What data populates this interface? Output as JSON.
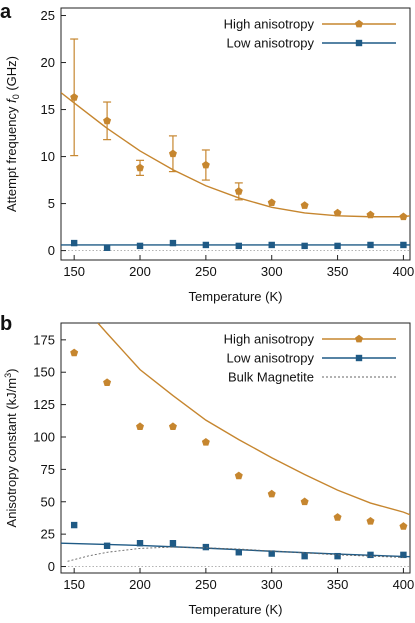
{
  "colors": {
    "high": "#C6862F",
    "low": "#1F5A85",
    "bulk": "#666666",
    "zero": "#9A9A9A"
  },
  "chart_data": [
    {
      "type": "scatter",
      "panel_label": "a",
      "xlabel": "Temperature (K)",
      "ylabel": "Attempt frequency f0 (GHz)",
      "ylabel_main": "Attempt frequency ",
      "ylabel_symbol": "f",
      "ylabel_sub": "0",
      "ylabel_unit": " (GHz)",
      "xlim": [
        140,
        405
      ],
      "ylim": [
        -1,
        25.8
      ],
      "x_ticks": [
        150,
        200,
        250,
        300,
        350,
        400
      ],
      "y_ticks": [
        0,
        5,
        10,
        15,
        20,
        25
      ],
      "grid": false,
      "legend": "top-right",
      "zero_line": 0,
      "series": [
        {
          "name": "High anisotropy",
          "marker": "pentagon",
          "color_key": "high",
          "points": [
            {
              "x": 150,
              "y": 16.3,
              "err": 6.2
            },
            {
              "x": 175,
              "y": 13.8,
              "err": 2.0
            },
            {
              "x": 200,
              "y": 8.8,
              "err": 0.8
            },
            {
              "x": 225,
              "y": 10.3,
              "err": 1.9
            },
            {
              "x": 250,
              "y": 9.1,
              "err": 1.6
            },
            {
              "x": 275,
              "y": 6.3,
              "err": 0.9
            },
            {
              "x": 300,
              "y": 5.1,
              "err": 0
            },
            {
              "x": 325,
              "y": 4.8,
              "err": 0
            },
            {
              "x": 350,
              "y": 4.0,
              "err": 0
            },
            {
              "x": 375,
              "y": 3.8,
              "err": 0
            },
            {
              "x": 400,
              "y": 3.6,
              "err": 0
            }
          ],
          "fit": [
            [
              140,
              16.8
            ],
            [
              150,
              15.7
            ],
            [
              175,
              13.0
            ],
            [
              200,
              10.6
            ],
            [
              225,
              8.6
            ],
            [
              250,
              6.9
            ],
            [
              275,
              5.6
            ],
            [
              300,
              4.6
            ],
            [
              325,
              4.0
            ],
            [
              350,
              3.7
            ],
            [
              375,
              3.6
            ],
            [
              400,
              3.6
            ],
            [
              405,
              3.7
            ]
          ]
        },
        {
          "name": "Low anisotropy",
          "marker": "square",
          "color_key": "low",
          "points": [
            {
              "x": 150,
              "y": 0.8
            },
            {
              "x": 175,
              "y": 0.3
            },
            {
              "x": 200,
              "y": 0.5
            },
            {
              "x": 225,
              "y": 0.8
            },
            {
              "x": 250,
              "y": 0.6
            },
            {
              "x": 275,
              "y": 0.5
            },
            {
              "x": 300,
              "y": 0.6
            },
            {
              "x": 325,
              "y": 0.5
            },
            {
              "x": 350,
              "y": 0.5
            },
            {
              "x": 375,
              "y": 0.6
            },
            {
              "x": 400,
              "y": 0.6
            }
          ],
          "fit": [
            [
              140,
              0.6
            ],
            [
              405,
              0.6
            ]
          ]
        }
      ]
    },
    {
      "type": "scatter",
      "panel_label": "b",
      "xlabel": "Temperature (K)",
      "ylabel": "Anisotropy constant (kJ/m3)",
      "ylabel_main": "Anisotropy constant (kJ/m",
      "ylabel_sup": "3",
      "ylabel_close": ")",
      "xlim": [
        140,
        405
      ],
      "ylim": [
        -5,
        188
      ],
      "x_ticks": [
        150,
        200,
        250,
        300,
        350,
        400
      ],
      "y_ticks": [
        0,
        25,
        50,
        75,
        100,
        125,
        150,
        175
      ],
      "grid": false,
      "legend": "top-right",
      "zero_line": 0,
      "series": [
        {
          "name": "High anisotropy",
          "marker": "pentagon",
          "color_key": "high",
          "points": [
            {
              "x": 150,
              "y": 165
            },
            {
              "x": 175,
              "y": 142
            },
            {
              "x": 200,
              "y": 108
            },
            {
              "x": 225,
              "y": 108
            },
            {
              "x": 250,
              "y": 96
            },
            {
              "x": 275,
              "y": 70
            },
            {
              "x": 300,
              "y": 56
            },
            {
              "x": 325,
              "y": 50
            },
            {
              "x": 350,
              "y": 38
            },
            {
              "x": 375,
              "y": 35
            },
            {
              "x": 400,
              "y": 31
            }
          ],
          "fit": [
            [
              168,
              188
            ],
            [
              175,
              180
            ],
            [
              200,
              152
            ],
            [
              225,
              132
            ],
            [
              250,
              113
            ],
            [
              275,
              98
            ],
            [
              300,
              84
            ],
            [
              325,
              71
            ],
            [
              350,
              59
            ],
            [
              375,
              49
            ],
            [
              400,
              42
            ],
            [
              405,
              40
            ]
          ]
        },
        {
          "name": "Low anisotropy",
          "marker": "square",
          "color_key": "low",
          "points": [
            {
              "x": 150,
              "y": 32
            },
            {
              "x": 175,
              "y": 16
            },
            {
              "x": 200,
              "y": 18
            },
            {
              "x": 225,
              "y": 18
            },
            {
              "x": 250,
              "y": 15
            },
            {
              "x": 275,
              "y": 11
            },
            {
              "x": 300,
              "y": 10
            },
            {
              "x": 325,
              "y": 8
            },
            {
              "x": 350,
              "y": 8
            },
            {
              "x": 375,
              "y": 9
            },
            {
              "x": 400,
              "y": 9
            }
          ],
          "fit": [
            [
              140,
              18
            ],
            [
              200,
              16.3
            ],
            [
              250,
              14.2
            ],
            [
              300,
              11.8
            ],
            [
              350,
              9.6
            ],
            [
              405,
              7.6
            ]
          ]
        },
        {
          "name": "Bulk Magnetite",
          "marker": "none",
          "color_key": "bulk",
          "dashed": true,
          "points": [],
          "fit": [
            [
              145,
              4
            ],
            [
              160,
              8
            ],
            [
              175,
              11
            ],
            [
              200,
              14
            ],
            [
              225,
              15
            ],
            [
              250,
              14.5
            ],
            [
              275,
              13.5
            ],
            [
              300,
              12
            ],
            [
              325,
              10.5
            ],
            [
              350,
              9
            ],
            [
              375,
              8
            ],
            [
              400,
              7
            ]
          ]
        }
      ]
    }
  ]
}
